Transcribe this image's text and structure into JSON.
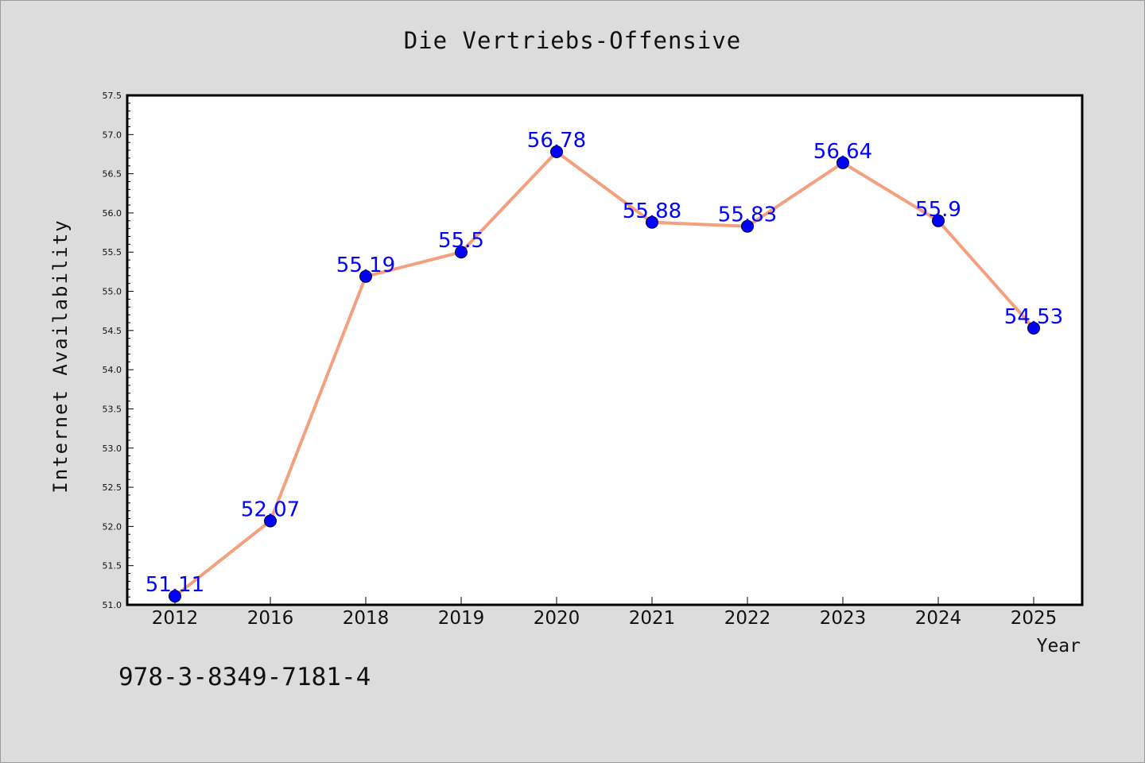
{
  "isbn": "978-3-8349-7181-4",
  "colors": {
    "line": "#f4a07f",
    "marker": "#0000ff",
    "data_label": "#0000ff",
    "background": "#dcdcdc",
    "plot_bg": "#ffffff"
  },
  "chart_data": {
    "type": "line",
    "title": "Die Vertriebs-Offensive",
    "xlabel": "Year",
    "ylabel": "Internet Availability",
    "categories": [
      "2012",
      "2016",
      "2018",
      "2019",
      "2020",
      "2021",
      "2022",
      "2023",
      "2024",
      "2025"
    ],
    "values": [
      51.11,
      52.07,
      55.19,
      55.5,
      56.78,
      55.88,
      55.83,
      56.64,
      55.9,
      54.53
    ],
    "data_labels": [
      "51.11",
      "52.07",
      "55.19",
      "55.5",
      "56.78",
      "55.88",
      "55.83",
      "56.64",
      "55.9",
      "54.53"
    ],
    "ylim": [
      51.0,
      57.5
    ],
    "yticks": [
      "51.0",
      "51.5",
      "52.0",
      "52.5",
      "53.0",
      "53.5",
      "54.0",
      "54.5",
      "55.0",
      "55.5",
      "56.0",
      "56.5",
      "57.0",
      "57.5"
    ],
    "grid": false,
    "legend": "none"
  }
}
